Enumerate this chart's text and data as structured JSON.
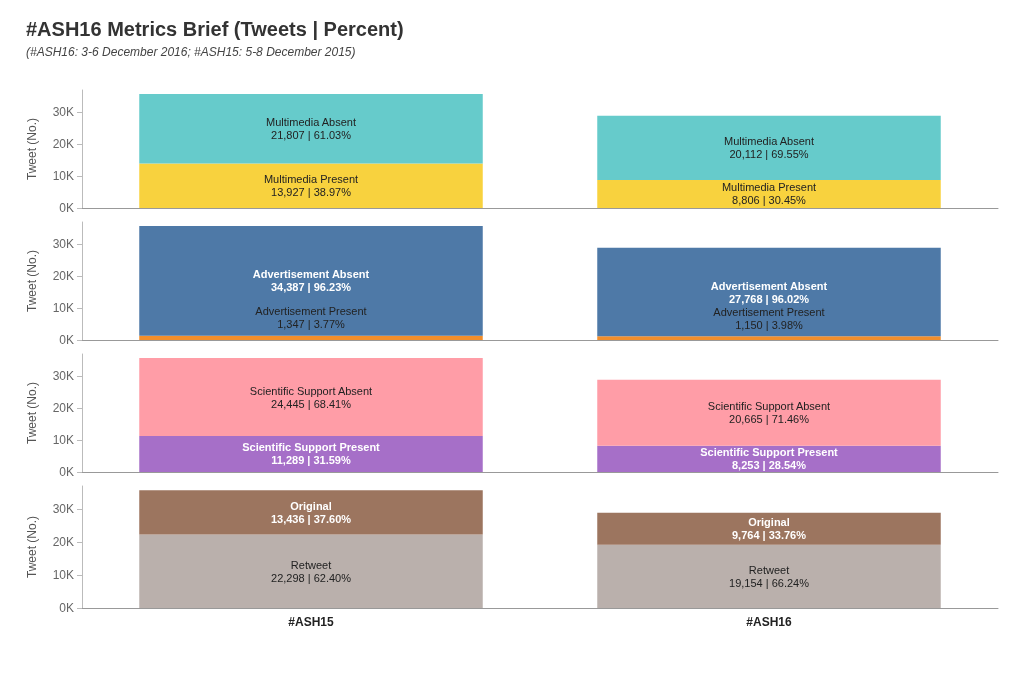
{
  "chart_data": [
    {
      "type": "bar",
      "title": "#ASH16 Metrics Brief (Tweets | Percent)",
      "subtitle": "(#ASH16: 3-6 December 2016; #ASH15: 5-8 December 2015)",
      "categories": [
        null,
        null
      ],
      "stacked": true,
      "ylabel": "Tweet (No.)",
      "ylim": [
        0,
        37000
      ],
      "yticks": [
        {
          "value": 0,
          "label": "0K"
        },
        {
          "value": 10000,
          "label": "10K"
        },
        {
          "value": 20000,
          "label": "20K"
        },
        {
          "value": 30000,
          "label": "30K"
        }
      ],
      "tick_labels": "y",
      "series": [
        {
          "name": "Multimedia Present",
          "color": "#f8d23e",
          "values": [
            13927,
            8806
          ],
          "value_labels": [
            "13,927 | 38.97%",
            "8,806 | 30.45%"
          ]
        },
        {
          "name": "Multimedia Absent",
          "color": "#66cbcb",
          "values": [
            21807,
            20112
          ],
          "value_labels": [
            "21,807 | 61.03%",
            "20,112 | 69.55%"
          ]
        }
      ]
    },
    {
      "type": "bar",
      "categories": [
        null,
        null
      ],
      "stacked": true,
      "ylabel": "Tweet (No.)",
      "ylim": [
        0,
        37000
      ],
      "yticks": [
        {
          "value": 0,
          "label": "0K"
        },
        {
          "value": 10000,
          "label": "10K"
        },
        {
          "value": 20000,
          "label": "20K"
        },
        {
          "value": 30000,
          "label": "30K"
        }
      ],
      "tick_labels": "y",
      "series": [
        {
          "name": "Advertisement Present",
          "color": "#f28e2b",
          "values": [
            1347,
            1150
          ],
          "value_labels": [
            "1,347 | 3.77%",
            "1,150 | 3.98%"
          ]
        },
        {
          "name": "Advertisement Absent",
          "color": "#4e79a7",
          "values": [
            34387,
            27768
          ],
          "value_labels": [
            "34,387 | 96.23%",
            "27,768 | 96.02%"
          ]
        }
      ]
    },
    {
      "type": "bar",
      "categories": [
        null,
        null
      ],
      "stacked": true,
      "ylabel": "Tweet (No.)",
      "ylim": [
        0,
        37000
      ],
      "yticks": [
        {
          "value": 0,
          "label": "0K"
        },
        {
          "value": 10000,
          "label": "10K"
        },
        {
          "value": 20000,
          "label": "20K"
        },
        {
          "value": 30000,
          "label": "30K"
        }
      ],
      "tick_labels": "y",
      "series": [
        {
          "name": "Scientific Support Present",
          "color": "#a66fc8",
          "values": [
            11289,
            8253
          ],
          "value_labels": [
            "11,289 | 31.59%",
            "8,253 | 28.54%"
          ]
        },
        {
          "name": "Scientific Support Absent",
          "color": "#ff9da7",
          "values": [
            24445,
            20665
          ],
          "value_labels": [
            "24,445 | 68.41%",
            "20,665 | 71.46%"
          ]
        }
      ]
    },
    {
      "type": "bar",
      "categories": [
        "#ASH15",
        "#ASH16"
      ],
      "stacked": true,
      "ylabel": "Tweet (No.)",
      "ylim": [
        0,
        37000
      ],
      "yticks": [
        {
          "value": 0,
          "label": "0K"
        },
        {
          "value": 10000,
          "label": "10K"
        },
        {
          "value": 20000,
          "label": "20K"
        },
        {
          "value": 30000,
          "label": "30K"
        }
      ],
      "series": [
        {
          "name": "Retweet",
          "color": "#bab0ac",
          "values": [
            22298,
            19154
          ],
          "value_labels": [
            "22,298 | 62.40%",
            "19,154 | 66.24%"
          ]
        },
        {
          "name": "Original",
          "color": "#9c755f",
          "values": [
            13436,
            9764
          ],
          "value_labels": [
            "13,436 | 37.60%",
            "9,764 | 33.76%"
          ]
        }
      ]
    }
  ]
}
